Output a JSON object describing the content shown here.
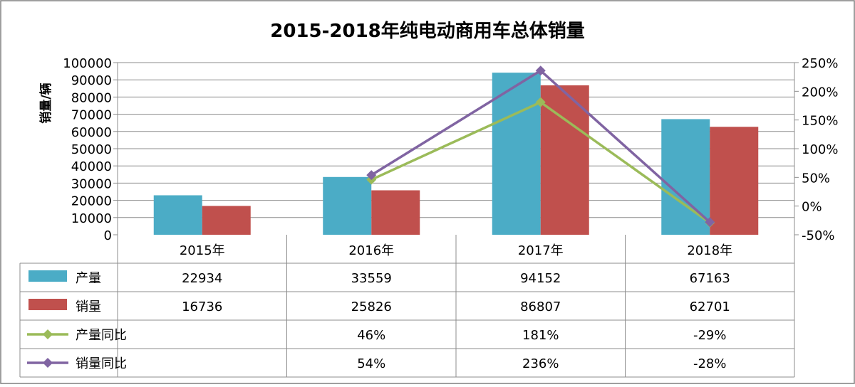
{
  "chart_data": {
    "type": "bar",
    "title": "2015-2018年纯电动商用车总体销量",
    "ylabel": "销量/辆",
    "categories": [
      "2015年",
      "2016年",
      "2017年",
      "2018年"
    ],
    "ylim": [
      0,
      100000
    ],
    "yticks": [
      0,
      10000,
      20000,
      30000,
      40000,
      50000,
      60000,
      70000,
      80000,
      90000,
      100000
    ],
    "y2lim": [
      -50,
      250
    ],
    "y2ticks": [
      -50,
      0,
      50,
      100,
      150,
      200,
      250
    ],
    "y2tick_labels": [
      "-50%",
      "0%",
      "50%",
      "100%",
      "150%",
      "200%",
      "250%"
    ],
    "grid": true,
    "series": [
      {
        "name": "产量",
        "kind": "bar",
        "axis": "left",
        "color": "#4bacc6",
        "values": [
          22934,
          33559,
          94152,
          67163
        ],
        "labels": [
          "22934",
          "33559",
          "94152",
          "67163"
        ]
      },
      {
        "name": "销量",
        "kind": "bar",
        "axis": "left",
        "color": "#c0504d",
        "values": [
          16736,
          25826,
          86807,
          62701
        ],
        "labels": [
          "16736",
          "25826",
          "86807",
          "62701"
        ]
      },
      {
        "name": "产量同比",
        "kind": "line",
        "axis": "right",
        "color": "#9bbb59",
        "values": [
          null,
          46,
          181,
          -29
        ],
        "labels": [
          "",
          "46%",
          "181%",
          "-29%"
        ]
      },
      {
        "name": "销量同比",
        "kind": "line",
        "axis": "right",
        "color": "#8064a2",
        "values": [
          null,
          54,
          236,
          -28
        ],
        "labels": [
          "",
          "54%",
          "236%",
          "-28%"
        ]
      }
    ]
  }
}
